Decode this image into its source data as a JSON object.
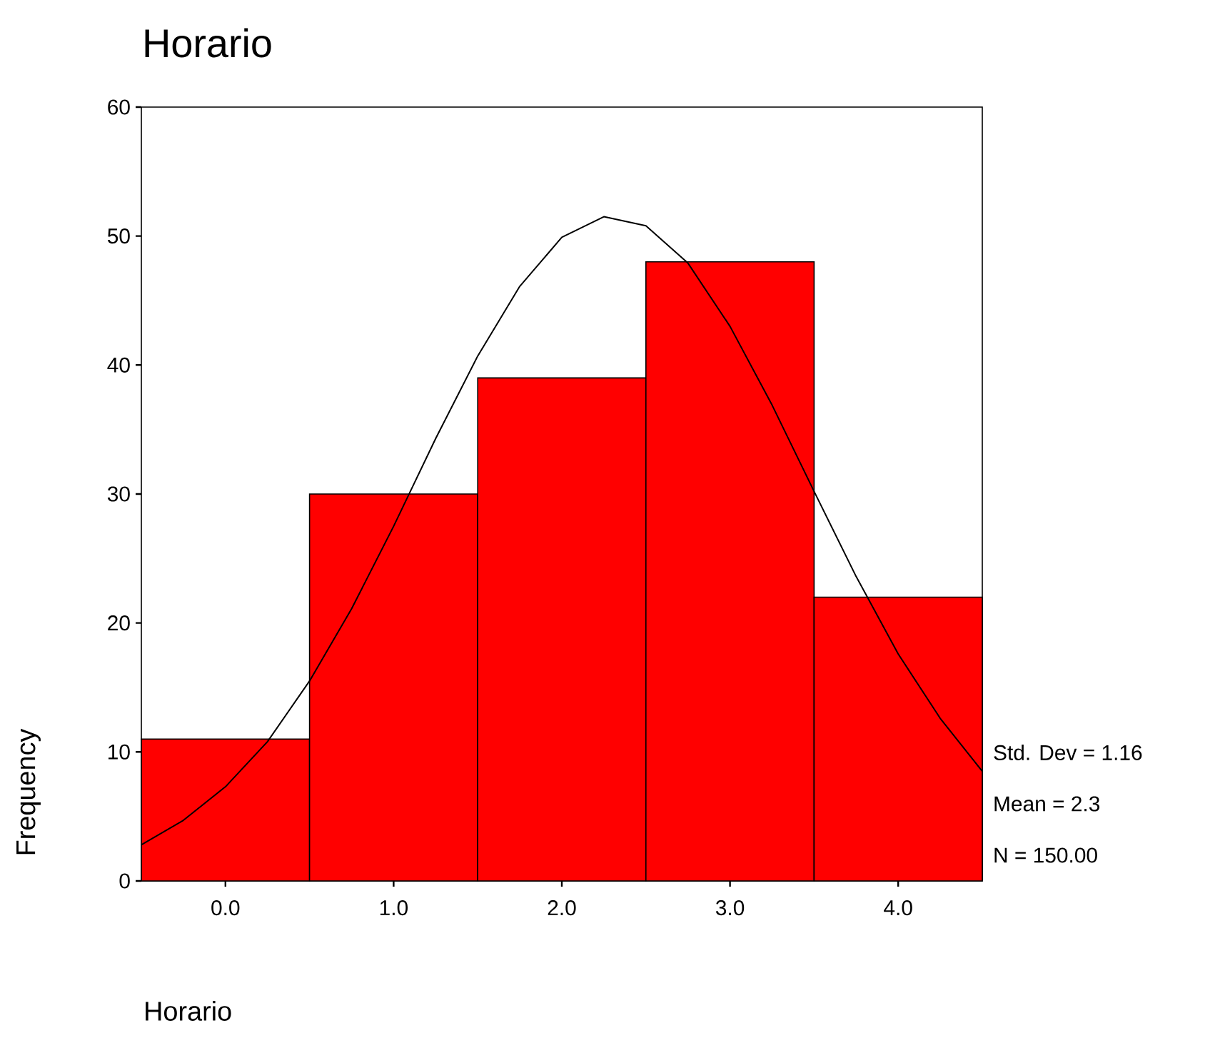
{
  "chart_data": {
    "type": "histogram",
    "title": "Horario",
    "xlabel": "Horario",
    "ylabel": "Frequency",
    "bins": [
      -0.5,
      0.5,
      1.5,
      2.5,
      3.5,
      4.5
    ],
    "values": [
      11,
      30,
      39,
      48,
      22
    ],
    "color": "#ff0000",
    "series": [
      {
        "type": "line",
        "color": "#000000",
        "x": [
          -0.5,
          -0.25,
          0,
          0.25,
          0.5,
          0.75,
          1.0,
          1.25,
          1.5,
          1.75,
          2.0,
          2.25,
          2.5,
          2.75,
          3.0,
          3.25,
          3.5,
          3.75,
          4.0,
          4.25,
          4.5
        ],
        "values": [
          2.8,
          4.7,
          7.3,
          10.8,
          15.5,
          21.1,
          27.5,
          34.3,
          40.7,
          46.1,
          49.9,
          51.5,
          50.8,
          47.9,
          43,
          36.9,
          30.2,
          23.6,
          17.6,
          12.6,
          8.5
        ]
      }
    ],
    "xlim": [
      -0.5,
      4.5
    ],
    "ylim": [
      0,
      60
    ],
    "xticks": [
      {
        "value": 0,
        "label": "0.0"
      },
      {
        "value": 1,
        "label": "1.0"
      },
      {
        "value": 2,
        "label": "2.0"
      },
      {
        "value": 3,
        "label": "3.0"
      },
      {
        "value": 4,
        "label": "4.0"
      }
    ],
    "yticks": [
      0,
      10,
      20,
      30,
      40,
      50,
      60
    ],
    "annotations": [
      "Std. Dev = 1.16",
      "Mean = 2.3",
      "N = 150.00"
    ]
  }
}
